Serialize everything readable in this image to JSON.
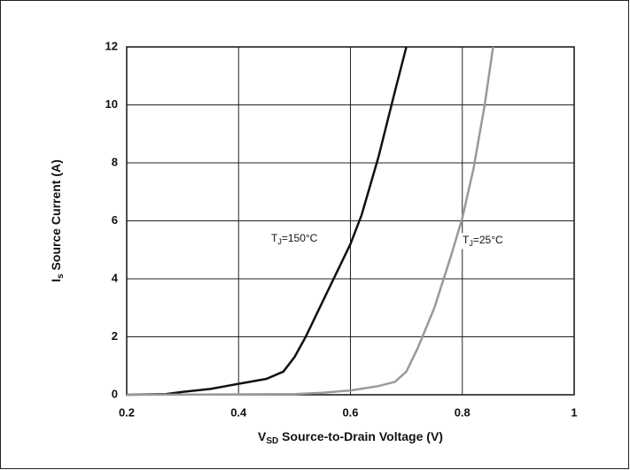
{
  "chart_data": {
    "type": "line",
    "ylabel": [
      "I",
      "s",
      " Source Current (A)"
    ],
    "xlabel": [
      "V",
      "SD",
      " Source-to-Drain Voltage (V)"
    ],
    "annotations": [
      [
        "T",
        "J",
        "=150°C"
      ],
      [
        "T",
        "J",
        "=25°C"
      ]
    ],
    "series": [
      {
        "name": "150°C",
        "color": "#111111",
        "x": [
          0.2,
          0.27,
          0.3,
          0.35,
          0.4,
          0.45,
          0.48,
          0.5,
          0.52,
          0.55,
          0.6,
          0.62,
          0.65,
          0.68,
          0.7
        ],
        "values": [
          0,
          0.02,
          0.1,
          0.2,
          0.38,
          0.55,
          0.8,
          1.3,
          2,
          3.2,
          5.2,
          6.2,
          8.2,
          10.5,
          12
        ]
      },
      {
        "name": "25°C",
        "color": "#999999",
        "x": [
          0.2,
          0.5,
          0.55,
          0.6,
          0.65,
          0.68,
          0.7,
          0.72,
          0.75,
          0.78,
          0.8,
          0.82,
          0.84,
          0.855
        ],
        "values": [
          0,
          0.02,
          0.07,
          0.15,
          0.3,
          0.45,
          0.8,
          1.6,
          3,
          4.8,
          6.1,
          7.8,
          10,
          12
        ]
      }
    ],
    "xlim": [
      0.2,
      1
    ],
    "xticks": [
      0.2,
      0.4,
      0.6,
      0.8,
      1
    ],
    "ylim": [
      0,
      12
    ],
    "yticks": [
      0,
      2,
      4,
      6,
      8,
      10,
      12
    ],
    "grid": true
  }
}
